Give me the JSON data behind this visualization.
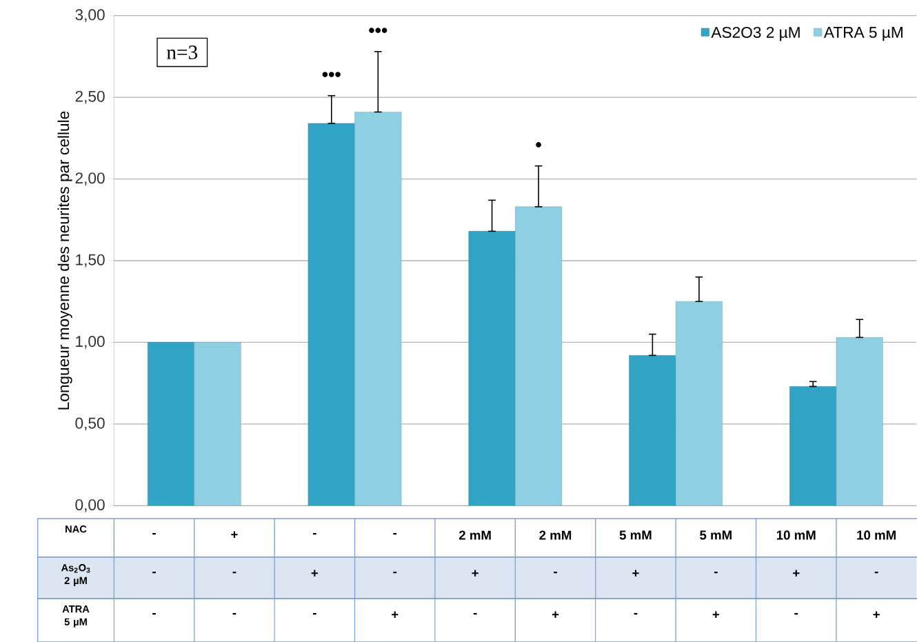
{
  "chart_data": {
    "type": "bar",
    "ylabel": "Longueur moyenne des neurites par cellule",
    "categories": [
      null,
      null,
      null,
      null,
      null
    ],
    "series": [
      {
        "name": "AS2O3 2 µM",
        "color": "#31a3c4",
        "values": [
          1.0,
          2.34,
          1.68,
          0.92,
          0.73
        ],
        "errors": [
          null,
          [
            2.34,
            2.51
          ],
          [
            1.68,
            1.87
          ],
          [
            0.92,
            1.05
          ],
          [
            0.73,
            0.76
          ]
        ]
      },
      {
        "name": "ATRA 5 µM",
        "color": "#8fcfe4",
        "values": [
          1.0,
          2.41,
          1.83,
          1.25,
          1.03
        ],
        "errors": [
          null,
          [
            2.41,
            2.78
          ],
          [
            1.83,
            2.08
          ],
          [
            1.25,
            1.4
          ],
          [
            1.03,
            1.14
          ]
        ]
      }
    ],
    "ylim": [
      0,
      3
    ],
    "yticks": [
      {
        "value": 0,
        "label": "0,00"
      },
      {
        "value": 0.5,
        "label": "0,50"
      },
      {
        "value": 1,
        "label": "1,00"
      },
      {
        "value": 1.5,
        "label": "1,50"
      },
      {
        "value": 2,
        "label": "2,00"
      },
      {
        "value": 2.5,
        "label": "2,50"
      },
      {
        "value": 3,
        "label": "3,00"
      }
    ],
    "grid": "y",
    "legend": "top right",
    "annotations": [
      "n=3",
      "•••",
      "•••",
      "•",
      "NAC",
      "-",
      "+",
      "-",
      "-",
      "2 mM",
      "2 mM",
      "5 mM",
      "5 mM",
      "10 mM",
      "10 mM",
      "As$_{2}$O$_{3}$ 2 µM",
      "-",
      "-",
      "+",
      "-",
      "+",
      "-",
      "+",
      "-",
      "+",
      "-",
      "ATRA 5 µM",
      "-",
      "-",
      "-",
      "+",
      "-",
      "+",
      "-",
      "+",
      "-",
      "+"
    ]
  }
}
